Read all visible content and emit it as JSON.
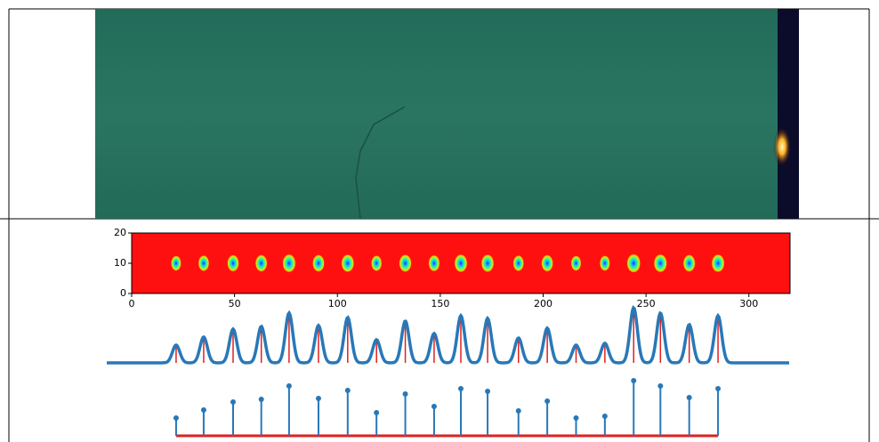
{
  "chart_data": {
    "type": "spot-profile",
    "xlim": [
      0,
      320
    ],
    "xticks": [
      0,
      50,
      100,
      150,
      200,
      250,
      300
    ],
    "ylim": [
      0,
      20
    ],
    "yticks": [
      0,
      10,
      20
    ],
    "spots": {
      "x": [
        21.6,
        35,
        49.3,
        63,
        76.5,
        90.8,
        105,
        119,
        133,
        147,
        160,
        173,
        188,
        202,
        216,
        230,
        244,
        257,
        271,
        285
      ],
      "y": [
        10,
        10,
        10,
        10,
        10,
        10,
        10,
        10,
        10,
        10,
        10,
        10,
        10,
        10,
        10,
        10,
        10,
        10,
        10,
        10
      ]
    },
    "peak_heights": [
      20,
      29,
      38,
      41,
      56,
      42,
      51,
      26,
      47,
      33,
      53,
      50,
      28,
      39,
      20,
      22,
      62,
      56,
      43,
      53
    ]
  }
}
